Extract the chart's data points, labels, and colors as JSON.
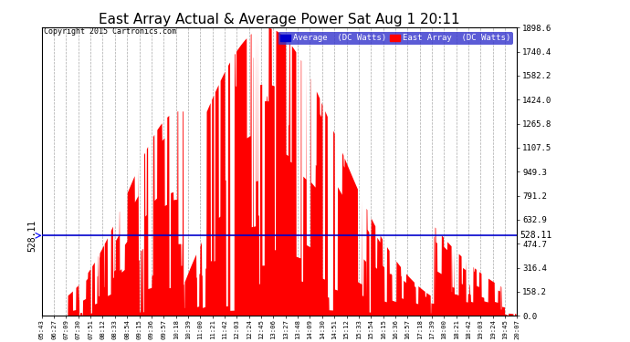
{
  "title": "East Array Actual & Average Power Sat Aug 1 20:11",
  "copyright": "Copyright 2015 Cartronics.com",
  "average_value": 528.11,
  "ymax": 1898.6,
  "ymin": 0.0,
  "yticks": [
    0.0,
    158.2,
    316.4,
    474.7,
    632.9,
    791.2,
    949.3,
    1107.5,
    1265.8,
    1424.0,
    1582.2,
    1740.4,
    1898.6
  ],
  "xtick_labels": [
    "05:43",
    "06:27",
    "07:09",
    "07:30",
    "07:51",
    "08:12",
    "08:33",
    "08:54",
    "09:15",
    "09:36",
    "09:57",
    "10:18",
    "10:39",
    "11:00",
    "11:21",
    "11:42",
    "12:03",
    "12:24",
    "12:45",
    "13:06",
    "13:27",
    "13:48",
    "14:09",
    "14:30",
    "14:51",
    "15:12",
    "15:33",
    "15:54",
    "16:15",
    "16:36",
    "16:57",
    "17:18",
    "17:39",
    "18:00",
    "18:21",
    "18:42",
    "19:03",
    "19:24",
    "19:45",
    "20:07"
  ],
  "bg_color": "#ffffff",
  "plot_bg_color": "#ffffff",
  "grid_color": "#aaaaaa",
  "line_color_avg": "#0000cc",
  "fill_color": "#ff0000",
  "title_fontsize": 12,
  "legend_avg_label": "Average  (DC Watts)",
  "legend_east_label": "East Array  (DC Watts)"
}
